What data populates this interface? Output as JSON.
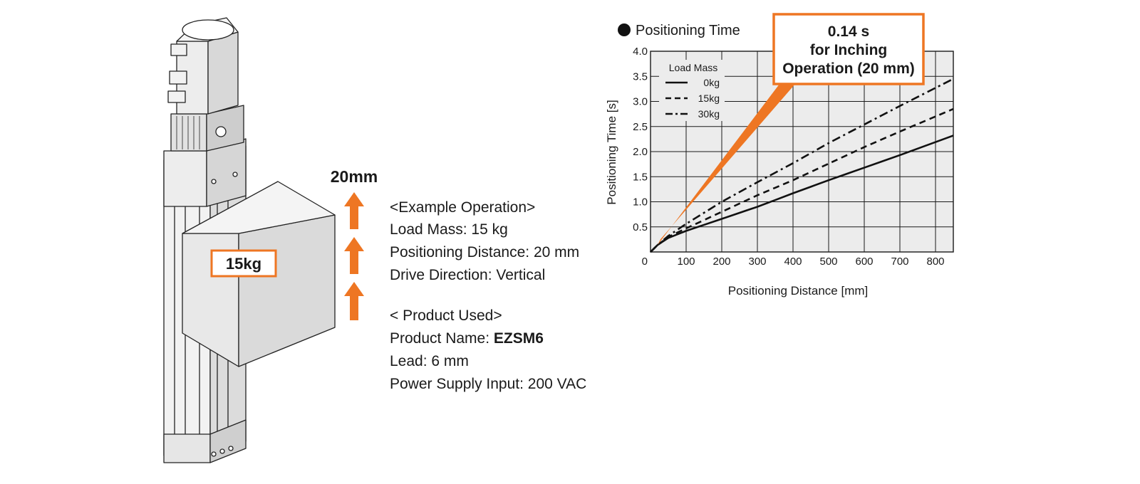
{
  "illustration": {
    "load_label": "15kg",
    "stroke_label": "20mm"
  },
  "example": {
    "heading": "<Example Operation>",
    "load_mass": "Load Mass: 15 kg",
    "positioning_distance": "Positioning Distance: 20 mm",
    "drive_direction": "Drive Direction: Vertical"
  },
  "product": {
    "heading": "< Product Used>",
    "name_label": "Product  Name: ",
    "name_value": "EZSM6",
    "lead": "Lead: 6 mm",
    "power": "Power Supply Input: 200 VAC"
  },
  "callout": {
    "line1": "0.14 s",
    "line2": "for Inching",
    "line3": "Operation (20 mm)"
  },
  "colors": {
    "accent": "#ee7623",
    "line": "#111111",
    "grid": "#1a1a1a",
    "plot_bg": "#ececec",
    "device_face": "#f2f2f2",
    "device_shade": "#dcdcdc"
  },
  "chart_data": {
    "type": "line",
    "title": "Positioning Time",
    "xlabel": "Positioning Distance [mm]",
    "ylabel": "Positioning Time [s]",
    "xlim": [
      0,
      850
    ],
    "ylim": [
      0,
      4.0
    ],
    "xticks": [
      100,
      200,
      300,
      400,
      500,
      600,
      700,
      800
    ],
    "xtick_labels": [
      "100",
      "200",
      "300",
      "400",
      "500",
      "600",
      "700",
      "800"
    ],
    "yticks": [
      0.5,
      1.0,
      1.5,
      2.0,
      2.5,
      3.0,
      3.5,
      4.0
    ],
    "ytick_labels": [
      "0.5",
      "1.0",
      "1.5",
      "2.0",
      "2.5",
      "3.0",
      "3.5",
      "4.0"
    ],
    "origin_label": "0",
    "grid": true,
    "legend": {
      "title": "Load Mass",
      "placement": "top-left"
    },
    "series": [
      {
        "name": "0kg",
        "style": "solid",
        "x": [
          0,
          20,
          50,
          100,
          200,
          300,
          400,
          500,
          600,
          700,
          850
        ],
        "y": [
          0,
          0.14,
          0.28,
          0.42,
          0.66,
          0.9,
          1.17,
          1.43,
          1.68,
          1.93,
          2.32
        ]
      },
      {
        "name": "15kg",
        "style": "dashed",
        "x": [
          0,
          20,
          50,
          100,
          200,
          300,
          400,
          500,
          600,
          700,
          850
        ],
        "y": [
          0,
          0.14,
          0.3,
          0.47,
          0.8,
          1.13,
          1.43,
          1.76,
          2.09,
          2.4,
          2.85
        ]
      },
      {
        "name": "30kg",
        "style": "dashdot",
        "x": [
          0,
          20,
          50,
          100,
          200,
          300,
          400,
          500,
          600,
          700,
          850
        ],
        "y": [
          0,
          0.14,
          0.32,
          0.56,
          1.0,
          1.39,
          1.77,
          2.17,
          2.54,
          2.91,
          3.45
        ]
      }
    ],
    "annotation": {
      "x": 20,
      "y": 0.14
    }
  }
}
